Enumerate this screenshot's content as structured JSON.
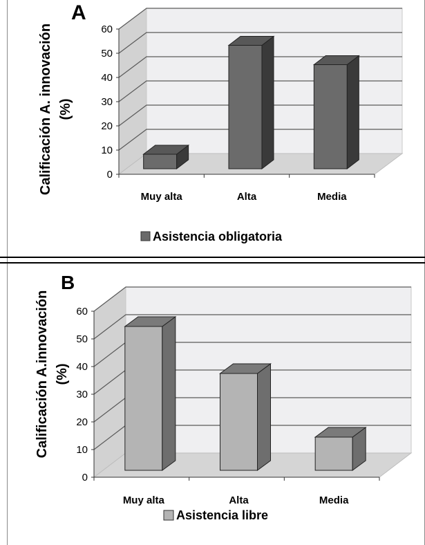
{
  "chart_data": [
    {
      "type": "bar",
      "panel_label": "A",
      "categories": [
        "Muy alta",
        "Alta",
        "Media"
      ],
      "series": [
        {
          "name": "Asistencia obligatoria",
          "values": [
            6,
            51,
            43
          ]
        }
      ],
      "ylabel_line1": "Calificación A. innovación",
      "ylabel_line2": "(%)",
      "ylim": [
        0,
        60
      ],
      "yticks": [
        "0",
        "10",
        "20",
        "30",
        "40",
        "50",
        "60"
      ],
      "grid": true,
      "legend_position": "bottom",
      "colors": {
        "face": "#6b6b6b",
        "side": "#3a3a3a",
        "top": "#585858",
        "back_wall": "#efeff1",
        "side_wall": "#d2d2d2",
        "floor": "#d5d5d5"
      }
    },
    {
      "type": "bar",
      "panel_label": "B",
      "categories": [
        "Muy alta",
        "Alta",
        "Media"
      ],
      "series": [
        {
          "name": "Asistencia libre",
          "values": [
            52,
            35,
            12
          ]
        }
      ],
      "ylabel_line1": "Calificación A.innovación",
      "ylabel_line2": "(%)",
      "ylim": [
        0,
        60
      ],
      "yticks": [
        "0",
        "10",
        "20",
        "30",
        "40",
        "50",
        "60"
      ],
      "grid": true,
      "legend_position": "bottom",
      "colors": {
        "face": "#b4b4b4",
        "side": "#6e6e6e",
        "top": "#7a7a7a",
        "back_wall": "#efeff1",
        "side_wall": "#d2d2d2",
        "floor": "#d5d5d5"
      }
    }
  ]
}
